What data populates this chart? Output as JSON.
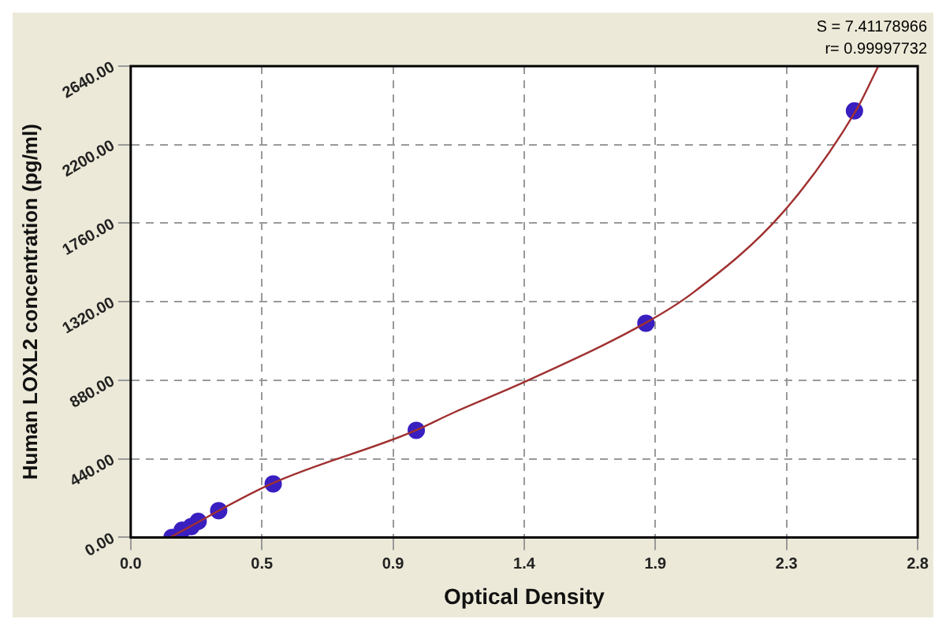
{
  "chart_data": {
    "type": "scatter",
    "xlabel": "Optical Density",
    "ylabel": "Human LOXL2 concentration (pg/ml)",
    "annotations": [
      "S = 7.41178966",
      "r= 0.99997732"
    ],
    "xlim": [
      0,
      2.8
    ],
    "xticks": [
      {
        "value": 0,
        "label": "0.0"
      },
      {
        "value": 0.4667,
        "label": "0.5"
      },
      {
        "value": 0.9333,
        "label": "0.9"
      },
      {
        "value": 1.4,
        "label": "1.4"
      },
      {
        "value": 1.8667,
        "label": "1.9"
      },
      {
        "value": 2.3333,
        "label": "2.3"
      },
      {
        "value": 2.8,
        "label": "2.8"
      }
    ],
    "ylim": [
      0,
      2640
    ],
    "yticks": [
      {
        "value": 0,
        "label": "0.00"
      },
      {
        "value": 440,
        "label": "440.00"
      },
      {
        "value": 880,
        "label": "880.00"
      },
      {
        "value": 1320,
        "label": "1320.00"
      },
      {
        "value": 1760,
        "label": "1760.00"
      },
      {
        "value": 2200,
        "label": "2200.00"
      },
      {
        "value": 2640,
        "label": "2640.00"
      }
    ],
    "grid": true,
    "legend": false,
    "marker": "circle",
    "series": [
      {
        "type": "line",
        "marker": "none",
        "color": "#a03030",
        "x": [
          0.14,
          0.5,
          1.0,
          1.15,
          1.4,
          1.83,
          2.0,
          2.32,
          2.58,
          2.66
        ],
        "values": [
          0,
          300,
          590,
          700,
          870,
          1200,
          1370,
          1820,
          2390,
          2640
        ]
      },
      {
        "type": "scatter",
        "color": "#3a1fc0",
        "x": [
          0.147,
          0.183,
          0.215,
          0.24,
          0.313,
          0.507,
          1.016,
          1.833,
          2.575
        ],
        "values": [
          0,
          40,
          60,
          90,
          150,
          300,
          600,
          1200,
          2390
        ]
      }
    ]
  }
}
